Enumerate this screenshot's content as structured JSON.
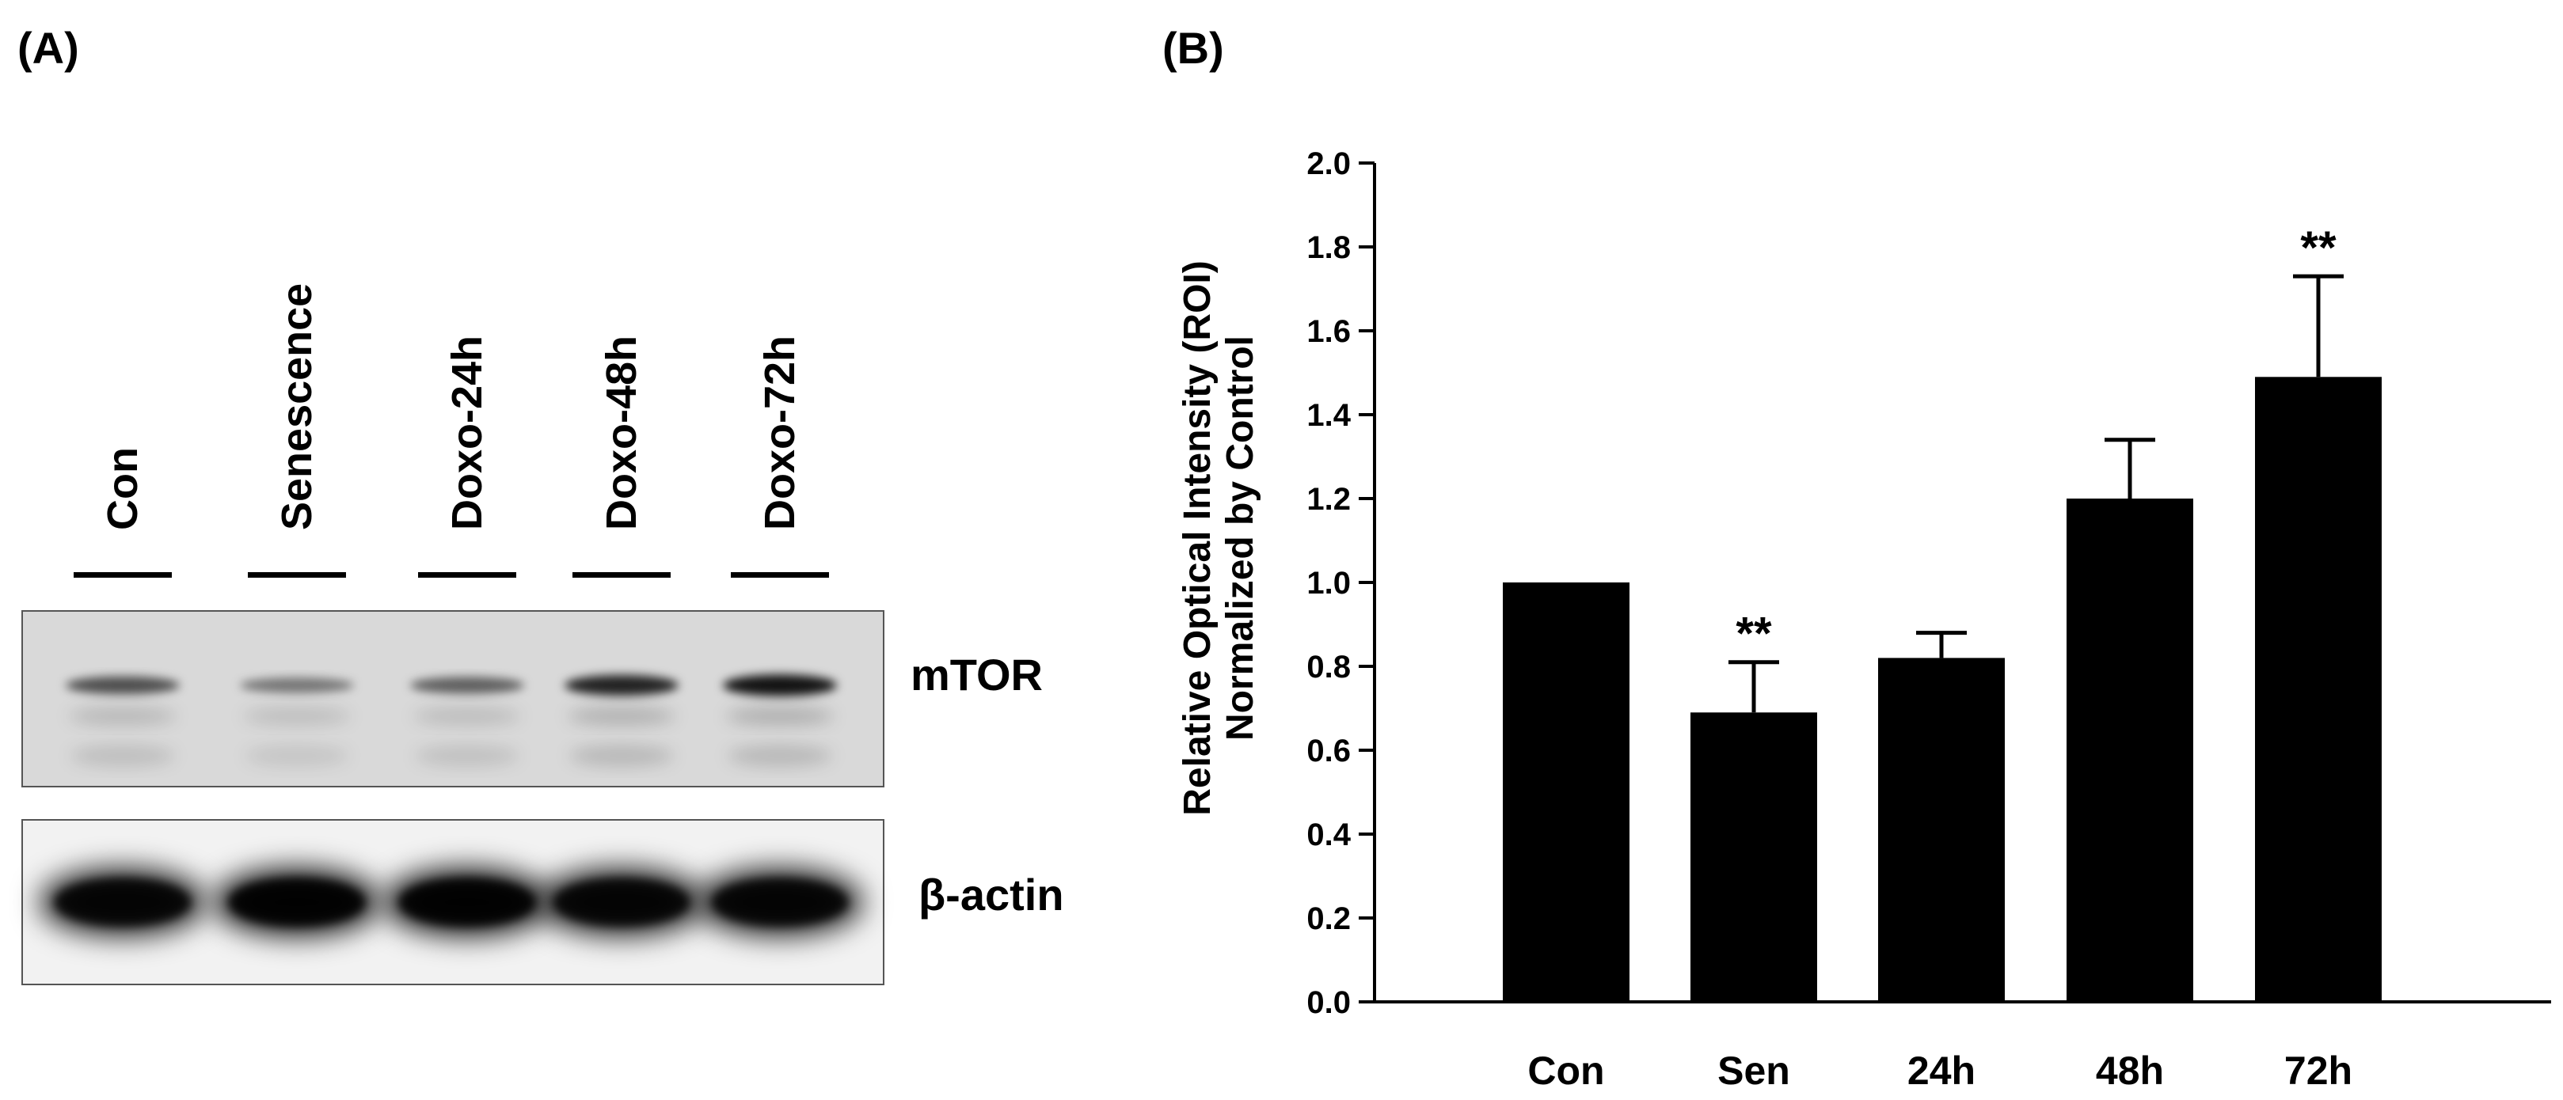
{
  "panel_a": {
    "label": "(A)",
    "lanes": [
      "Con",
      "Senescence",
      "Doxo-24h",
      "Doxo-48h",
      "Doxo-72h"
    ],
    "proteins": [
      {
        "name": "mTOR",
        "band_intensity": [
          0.55,
          0.3,
          0.45,
          0.85,
          0.95
        ]
      },
      {
        "name": "β-actin",
        "band_intensity": [
          0.95,
          1.0,
          1.0,
          0.95,
          0.95
        ]
      }
    ]
  },
  "panel_b": {
    "label": "(B)"
  },
  "chart_data": {
    "type": "bar",
    "categories": [
      "Con",
      "Sen",
      "24h",
      "48h",
      "72h"
    ],
    "values": [
      1.0,
      0.69,
      0.82,
      1.2,
      1.49
    ],
    "errors": [
      0.0,
      0.12,
      0.06,
      0.14,
      0.24
    ],
    "significance": [
      "",
      "**",
      "",
      "",
      "**"
    ],
    "ylabel_line1": "Relative Optical Intensity (ROI)",
    "ylabel_line2": "Normalized by Control",
    "xlabel": "",
    "ylim": [
      0,
      2.0
    ],
    "yticks": [
      "0.0",
      "0.2",
      "0.4",
      "0.6",
      "0.8",
      "1.0",
      "1.2",
      "1.4",
      "1.6",
      "1.8",
      "2.0"
    ],
    "bar_color": "#000000",
    "grid": false
  }
}
